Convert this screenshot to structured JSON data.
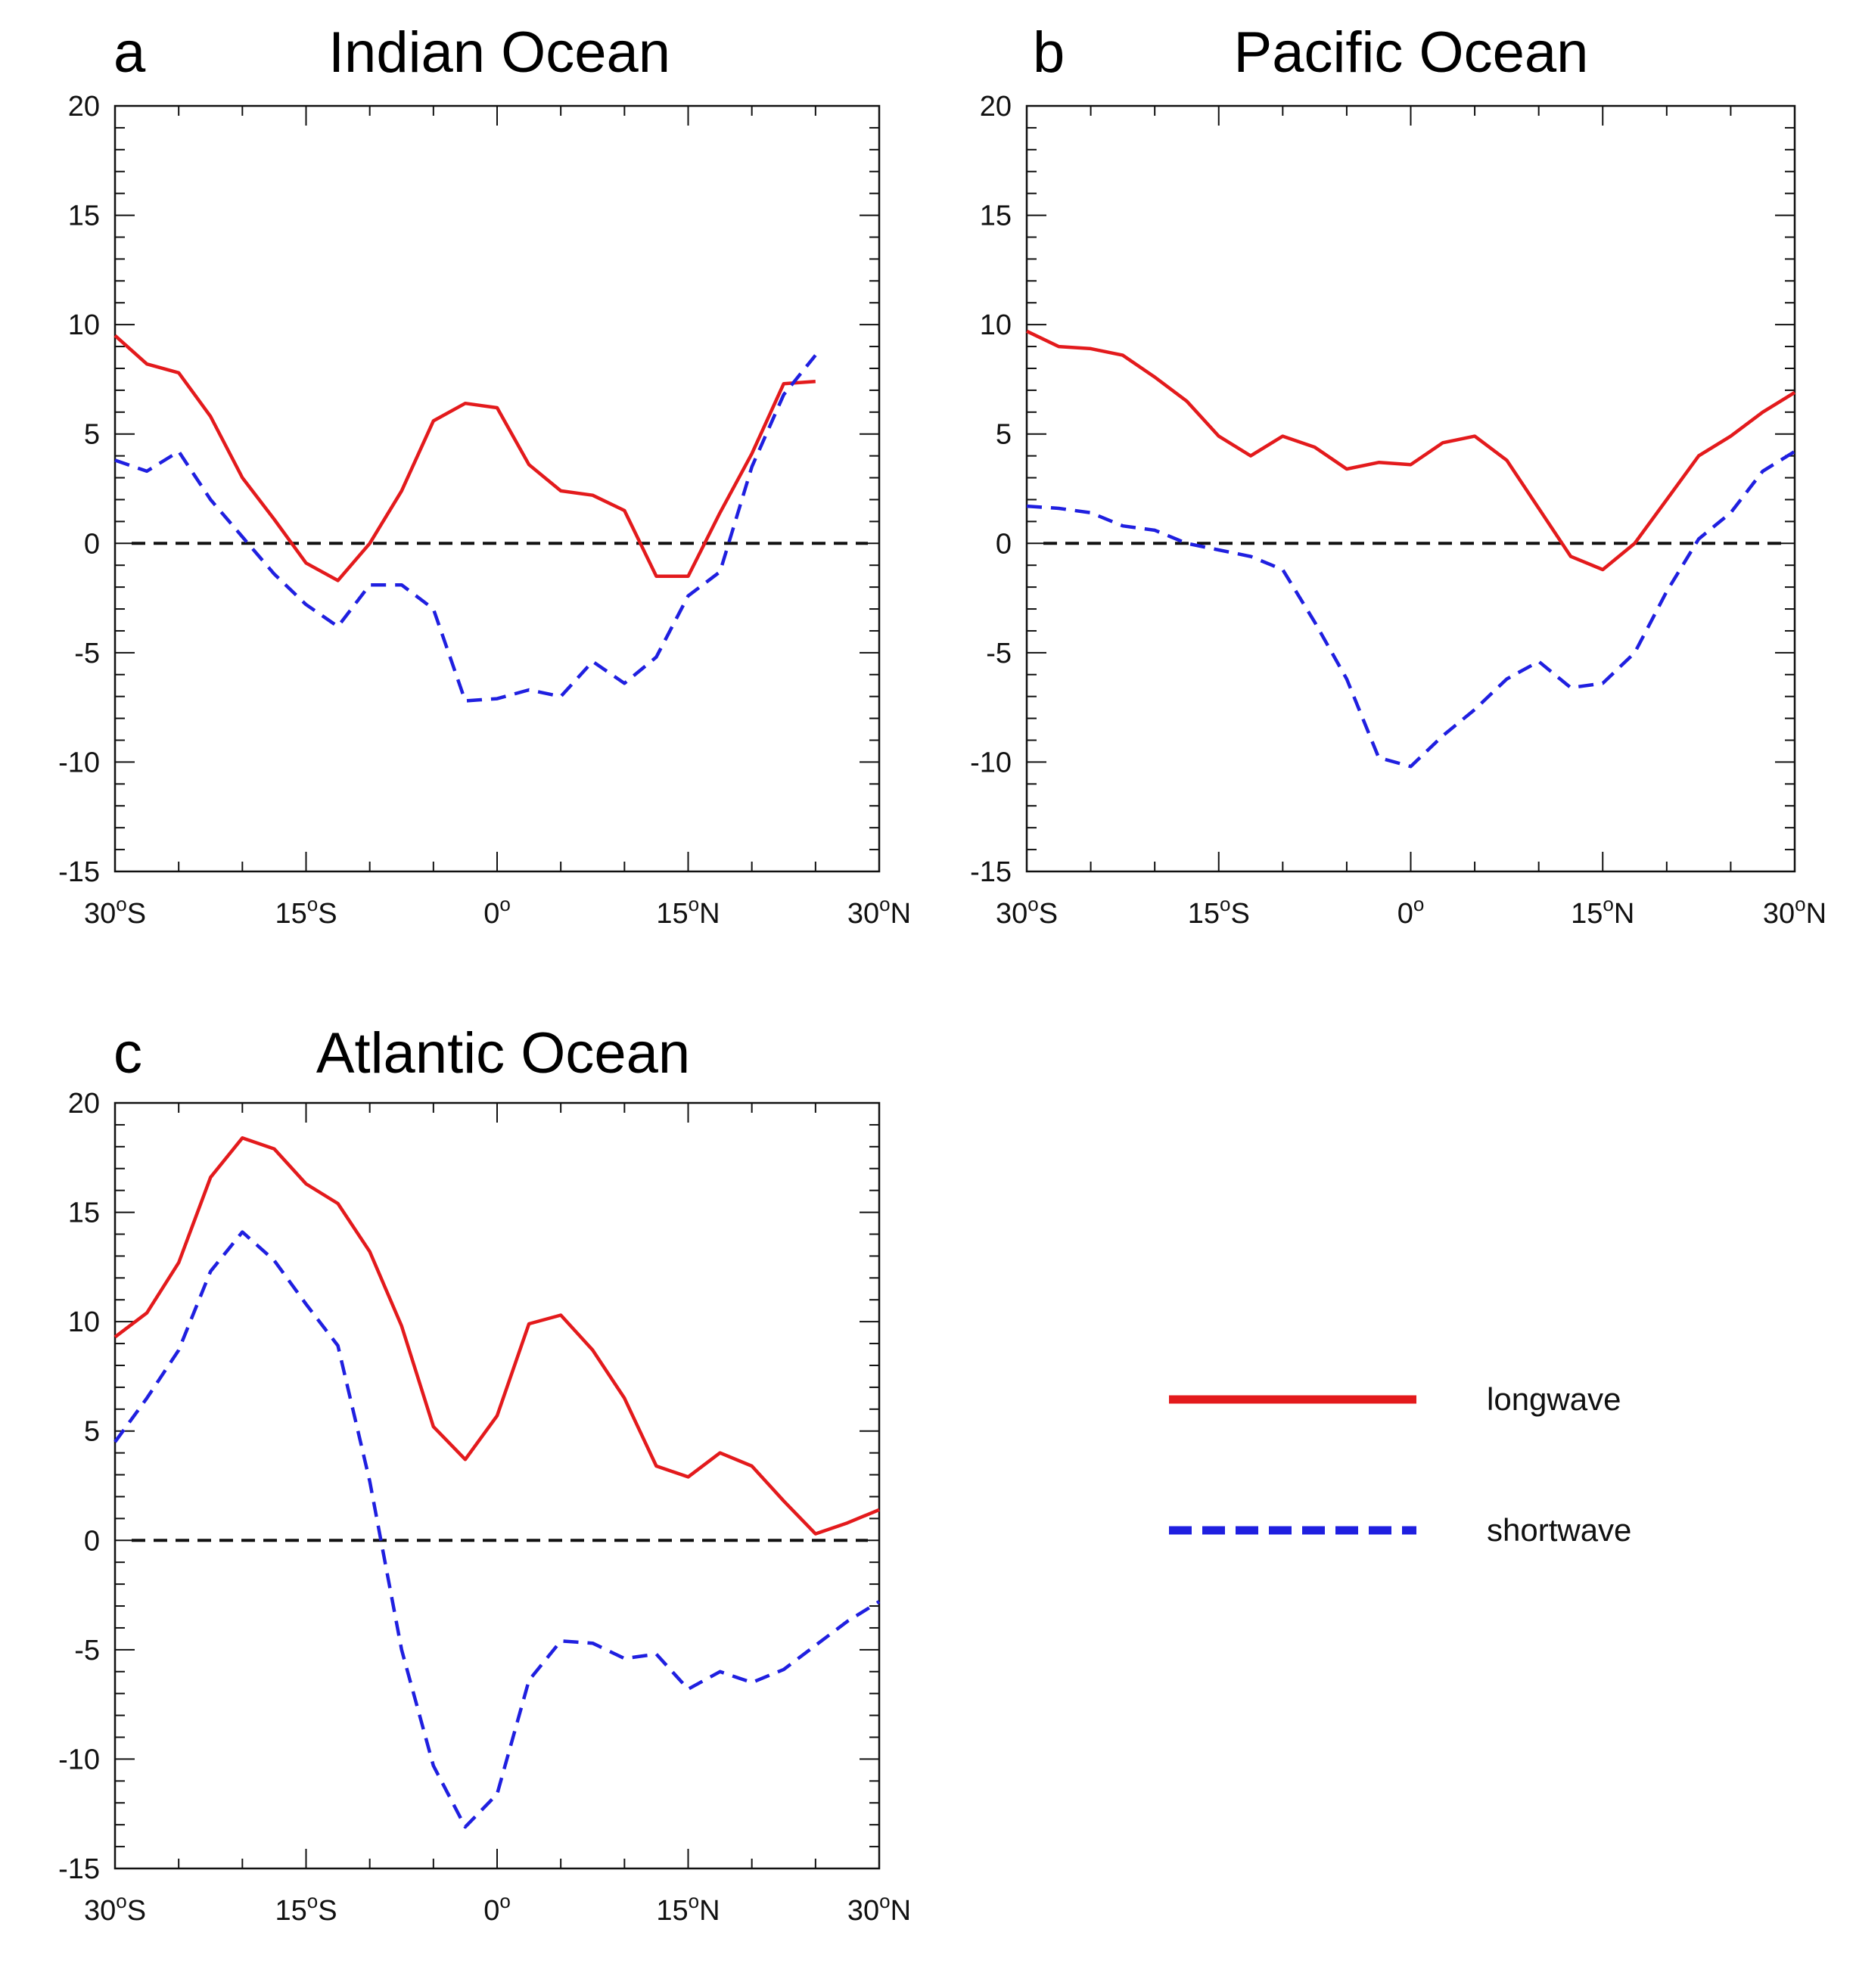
{
  "chart_data": [
    {
      "type": "line",
      "panel_letter": "a",
      "title": "Indian Ocean",
      "xlabel": "",
      "ylabel": "",
      "xlim": [
        -30,
        30
      ],
      "ylim": [
        -15,
        20
      ],
      "x_ticks": [
        {
          "value": -30,
          "deg": "30",
          "sup": "o",
          "hemi": "S"
        },
        {
          "value": -15,
          "deg": "15",
          "sup": "o",
          "hemi": "S"
        },
        {
          "value": 0,
          "deg": "0",
          "sup": "o",
          "hemi": ""
        },
        {
          "value": 15,
          "deg": "15",
          "sup": "o",
          "hemi": "N"
        },
        {
          "value": 30,
          "deg": "30",
          "sup": "o",
          "hemi": "N"
        }
      ],
      "y_ticks": [
        "20",
        "15",
        "10",
        "5",
        "0",
        "-5",
        "-10",
        "-15"
      ],
      "zero_line": true,
      "series": [
        {
          "name": "longwave",
          "style": "solid",
          "color": "#e31a1c",
          "x": [
            -30,
            -27.5,
            -25,
            -22.5,
            -20,
            -17.5,
            -15,
            -12.5,
            -10,
            -7.5,
            -5,
            -2.5,
            0,
            2.5,
            5,
            7.5,
            10,
            12.5,
            15,
            17.5,
            20,
            22.5,
            25
          ],
          "y": [
            9.5,
            8.2,
            7.8,
            5.8,
            3.0,
            1.1,
            -0.9,
            -1.7,
            0.0,
            2.4,
            5.6,
            6.4,
            6.2,
            3.6,
            2.4,
            2.2,
            1.5,
            -1.5,
            -1.5,
            1.4,
            4.1,
            7.3,
            7.4
          ]
        },
        {
          "name": "shortwave",
          "style": "dashed",
          "color": "#1f1fe0",
          "x": [
            -30,
            -27.5,
            -25,
            -22.5,
            -20,
            -17.5,
            -15,
            -12.5,
            -10,
            -7.5,
            -5,
            -2.5,
            0,
            2.5,
            5,
            7.5,
            10,
            12.5,
            15,
            17.5,
            20,
            22.5,
            25
          ],
          "y": [
            3.8,
            3.3,
            4.2,
            2.0,
            0.3,
            -1.4,
            -2.8,
            -3.8,
            -1.9,
            -1.9,
            -3.0,
            -7.2,
            -7.1,
            -6.7,
            -7.0,
            -5.4,
            -6.4,
            -5.2,
            -2.4,
            -1.3,
            3.5,
            6.8,
            8.6
          ]
        }
      ]
    },
    {
      "type": "line",
      "panel_letter": "b",
      "title": "Pacific Ocean",
      "xlabel": "",
      "ylabel": "",
      "xlim": [
        -30,
        30
      ],
      "ylim": [
        -15,
        20
      ],
      "x_ticks": [
        {
          "value": -30,
          "deg": "30",
          "sup": "o",
          "hemi": "S"
        },
        {
          "value": -15,
          "deg": "15",
          "sup": "o",
          "hemi": "S"
        },
        {
          "value": 0,
          "deg": "0",
          "sup": "o",
          "hemi": ""
        },
        {
          "value": 15,
          "deg": "15",
          "sup": "o",
          "hemi": "N"
        },
        {
          "value": 30,
          "deg": "30",
          "sup": "o",
          "hemi": "N"
        }
      ],
      "y_ticks": [
        "20",
        "15",
        "10",
        "5",
        "0",
        "-5",
        "-10",
        "-15"
      ],
      "zero_line": true,
      "series": [
        {
          "name": "longwave",
          "style": "solid",
          "color": "#e31a1c",
          "x": [
            -30,
            -27.5,
            -25,
            -22.5,
            -20,
            -17.5,
            -15,
            -12.5,
            -10,
            -7.5,
            -5,
            -2.5,
            0,
            2.5,
            5,
            7.5,
            10,
            12.5,
            15,
            17.5,
            20,
            22.5,
            25,
            27.5,
            30
          ],
          "y": [
            9.7,
            9.0,
            8.9,
            8.6,
            7.6,
            6.5,
            4.9,
            4.0,
            4.9,
            4.4,
            3.4,
            3.7,
            3.6,
            4.6,
            4.9,
            3.8,
            1.6,
            -0.6,
            -1.2,
            0.0,
            2.0,
            4.0,
            4.9,
            6.0,
            6.9
          ]
        },
        {
          "name": "shortwave",
          "style": "dashed",
          "color": "#1f1fe0",
          "x": [
            -30,
            -27.5,
            -25,
            -22.5,
            -20,
            -17.5,
            -15,
            -12.5,
            -10,
            -7.5,
            -5,
            -2.5,
            0,
            2.5,
            5,
            7.5,
            10,
            12.5,
            15,
            17.5,
            20,
            22.5,
            25,
            27.5,
            30
          ],
          "y": [
            1.7,
            1.6,
            1.4,
            0.8,
            0.6,
            0.0,
            -0.3,
            -0.6,
            -1.2,
            -3.6,
            -6.2,
            -9.8,
            -10.2,
            -8.8,
            -7.6,
            -6.2,
            -5.4,
            -6.6,
            -6.4,
            -5.0,
            -2.2,
            0.2,
            1.4,
            3.3,
            4.2
          ]
        }
      ]
    },
    {
      "type": "line",
      "panel_letter": "c",
      "title": "Atlantic Ocean",
      "xlabel": "",
      "ylabel": "",
      "xlim": [
        -30,
        30
      ],
      "ylim": [
        -15,
        20
      ],
      "x_ticks": [
        {
          "value": -30,
          "deg": "30",
          "sup": "o",
          "hemi": "S"
        },
        {
          "value": -15,
          "deg": "15",
          "sup": "o",
          "hemi": "S"
        },
        {
          "value": 0,
          "deg": "0",
          "sup": "o",
          "hemi": ""
        },
        {
          "value": 15,
          "deg": "15",
          "sup": "o",
          "hemi": "N"
        },
        {
          "value": 30,
          "deg": "30",
          "sup": "o",
          "hemi": "N"
        }
      ],
      "y_ticks": [
        "20",
        "15",
        "10",
        "5",
        "0",
        "-5",
        "-10",
        "-15"
      ],
      "zero_line": true,
      "series": [
        {
          "name": "longwave",
          "style": "solid",
          "color": "#e31a1c",
          "x": [
            -30,
            -27.5,
            -25,
            -22.5,
            -20,
            -17.5,
            -15,
            -12.5,
            -10,
            -7.5,
            -5,
            -2.5,
            0,
            2.5,
            5,
            7.5,
            10,
            12.5,
            15,
            17.5,
            20,
            22.5,
            25,
            27.5,
            30
          ],
          "y": [
            9.3,
            10.4,
            12.7,
            16.6,
            18.4,
            17.9,
            16.3,
            15.4,
            13.2,
            9.8,
            5.2,
            3.7,
            5.7,
            9.9,
            10.3,
            8.7,
            6.5,
            3.4,
            2.9,
            4.0,
            3.4,
            1.8,
            0.3,
            0.8,
            1.4
          ]
        },
        {
          "name": "shortwave",
          "style": "dashed",
          "color": "#1f1fe0",
          "x": [
            -30,
            -27.5,
            -25,
            -22.5,
            -20,
            -17.5,
            -15,
            -12.5,
            -10,
            -7.5,
            -5,
            -2.5,
            0,
            2.5,
            5,
            7.5,
            10,
            12.5,
            15,
            17.5,
            20,
            22.5,
            25,
            27.5,
            30
          ],
          "y": [
            4.5,
            6.5,
            8.7,
            12.3,
            14.1,
            12.8,
            10.8,
            8.9,
            2.7,
            -5.0,
            -10.3,
            -13.1,
            -11.6,
            -6.4,
            -4.6,
            -4.7,
            -5.4,
            -5.2,
            -6.8,
            -6.0,
            -6.5,
            -5.9,
            -4.8,
            -3.7,
            -2.8
          ]
        }
      ]
    }
  ],
  "legend": {
    "placement": "right of panel c",
    "items": [
      {
        "label": "longwave",
        "style": "solid",
        "color": "#e31a1c"
      },
      {
        "label": "shortwave",
        "style": "dashed",
        "color": "#1f1fe0"
      }
    ]
  },
  "colors": {
    "zero_line": "#111111",
    "axis": "#111111"
  }
}
